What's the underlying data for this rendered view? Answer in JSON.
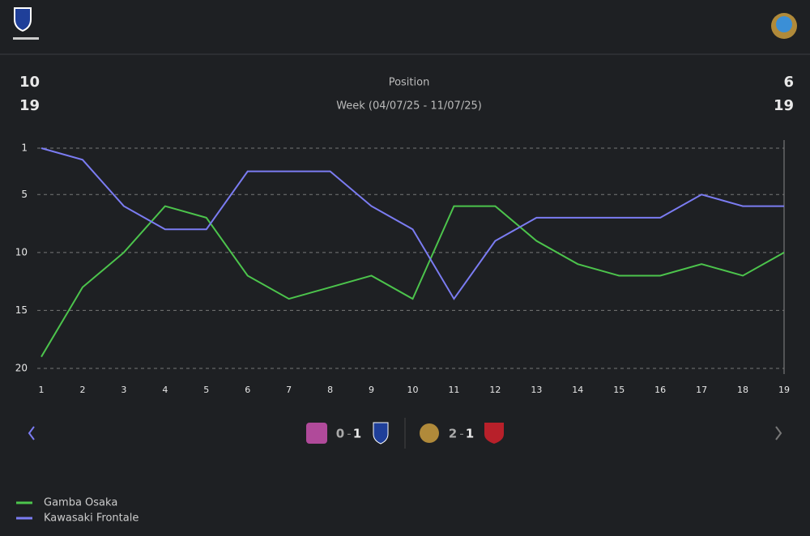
{
  "header": {
    "left": {
      "position": 10,
      "week": 19
    },
    "title": "Position",
    "subtitle": "Week (04/07/25 - 11/07/25)",
    "right": {
      "position": 6,
      "week": 19
    }
  },
  "chart_data": {
    "type": "line",
    "x": [
      1,
      2,
      3,
      4,
      5,
      6,
      7,
      8,
      9,
      10,
      11,
      12,
      13,
      14,
      15,
      16,
      17,
      18,
      19
    ],
    "xlim": [
      1,
      19
    ],
    "xticks": [
      1,
      2,
      3,
      4,
      5,
      6,
      7,
      8,
      9,
      10,
      11,
      12,
      13,
      14,
      15,
      16,
      17,
      18,
      19
    ],
    "ylim": [
      20,
      1
    ],
    "yticks": [
      1,
      5,
      10,
      15,
      20
    ],
    "grid": true,
    "series": [
      {
        "name": "Gamba Osaka",
        "color": "#4cc44c",
        "values": [
          19,
          13,
          10,
          6,
          7,
          12,
          14,
          13,
          12,
          14,
          6,
          6,
          9,
          11,
          12,
          12,
          11,
          12,
          10
        ]
      },
      {
        "name": "Kawasaki Frontale",
        "color": "#7b7cf2",
        "values": [
          1,
          2,
          6,
          8,
          8,
          3,
          3,
          3,
          6,
          8,
          14,
          9,
          7,
          7,
          7,
          7,
          5,
          6,
          6
        ]
      }
    ]
  },
  "matches": {
    "separator": "-",
    "list": [
      {
        "home_score": 0,
        "away_score": 1
      },
      {
        "home_score": 2,
        "away_score": 1
      }
    ]
  }
}
